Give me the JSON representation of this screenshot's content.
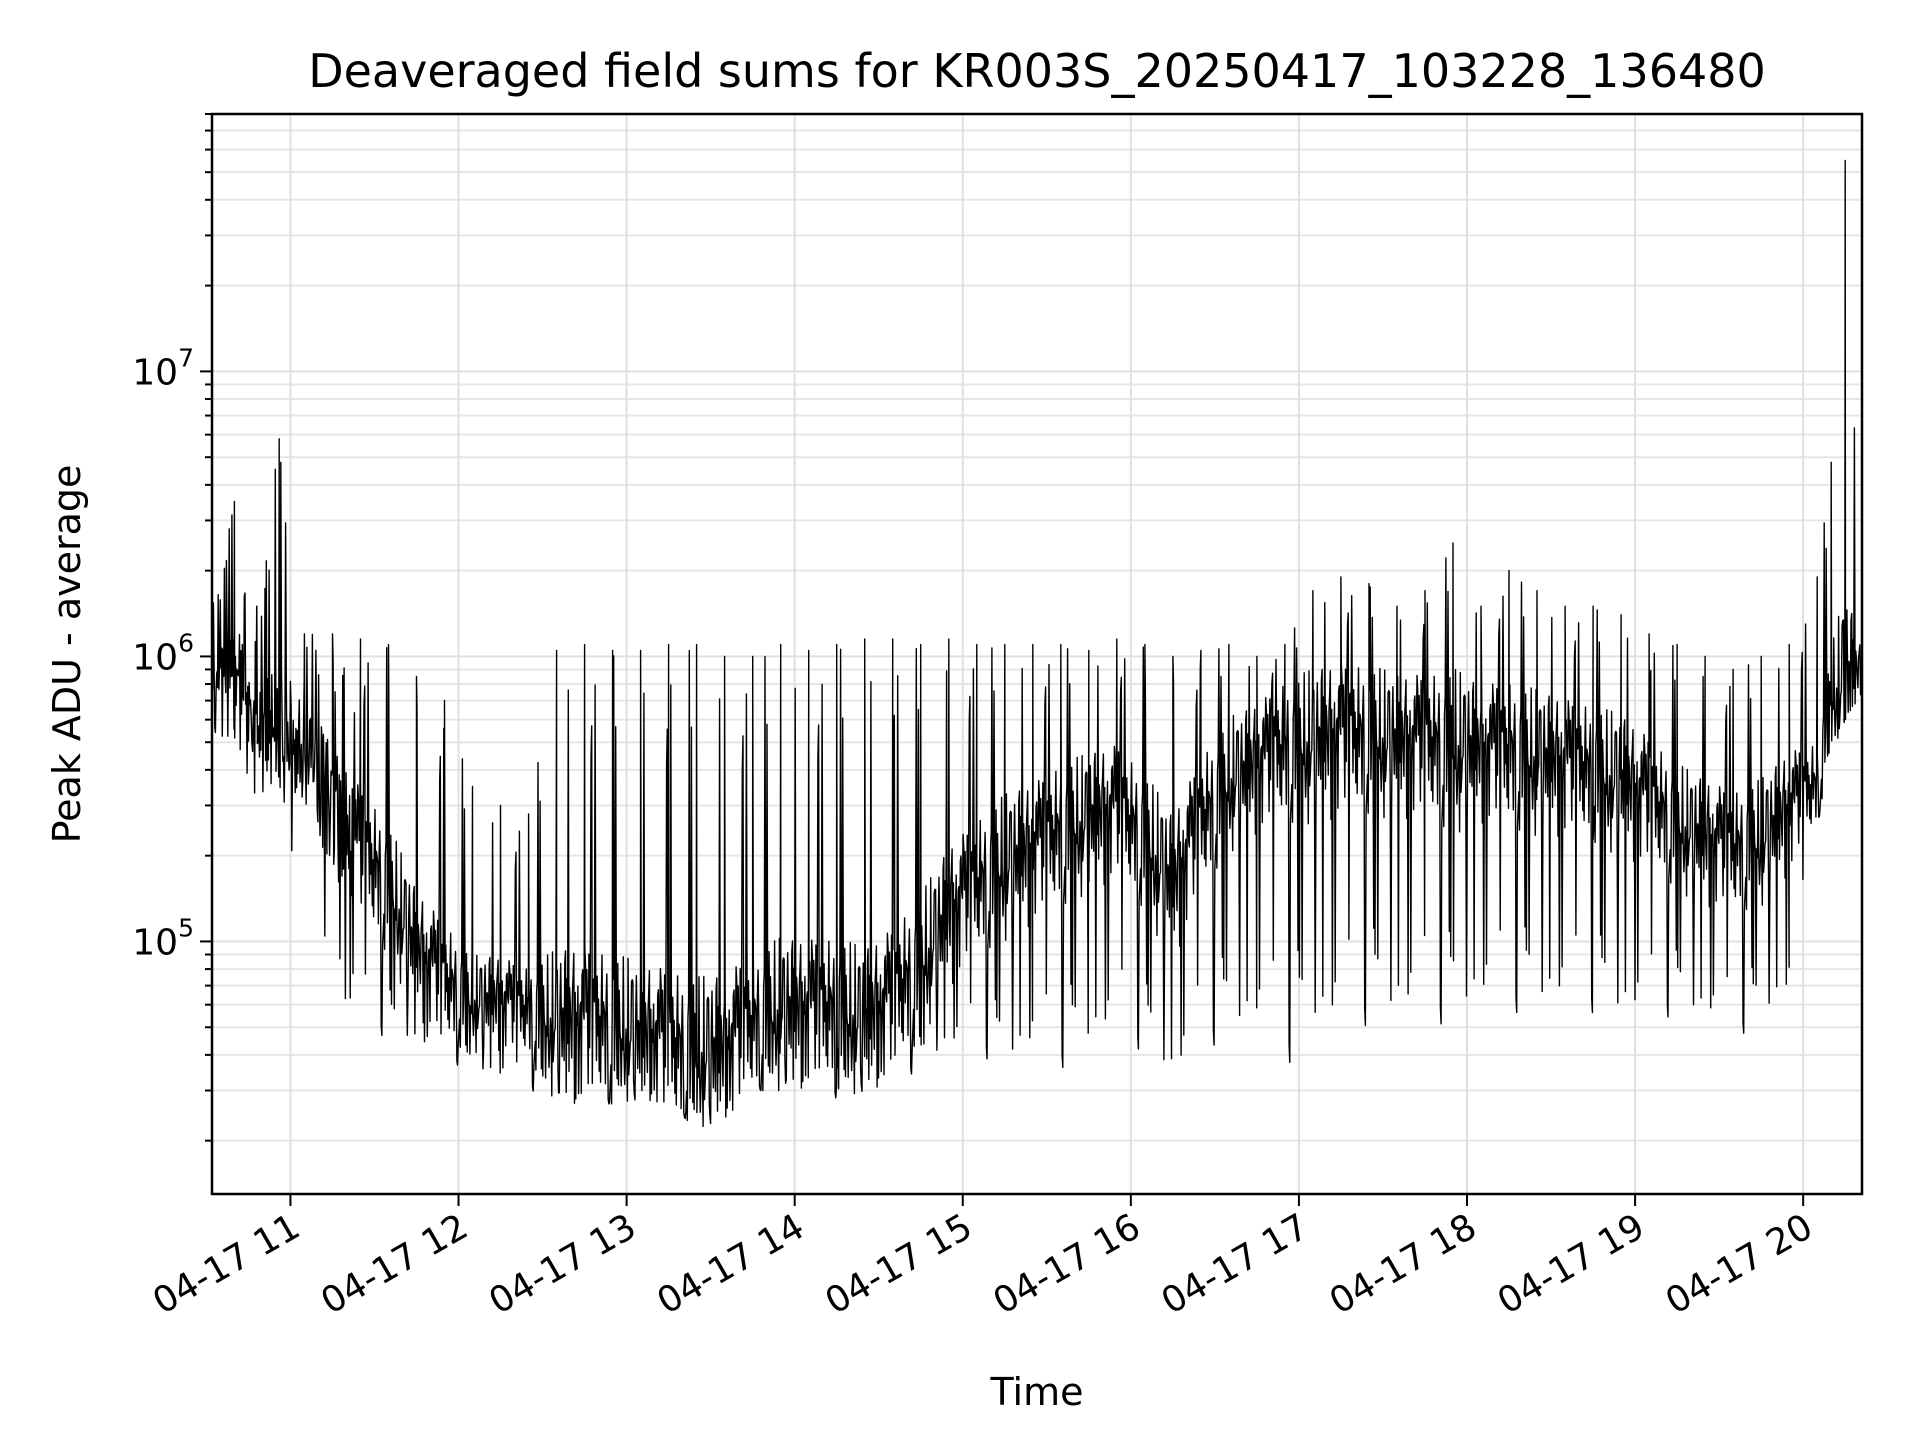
{
  "chart_data": {
    "type": "line",
    "title": "Deaveraged field sums for KR003S_20250417_103228_136480",
    "xlabel": "Time",
    "ylabel": "Peak ADU - average",
    "yscale": "log",
    "ylim": [
      13000,
      80000000
    ],
    "xlim": [
      "2025-04-17 10:32",
      "2025-04-17 20:21"
    ],
    "grid": true,
    "line_color": "#000000",
    "x_ticks": [
      {
        "value": "2025-04-17 11:00",
        "label": "04-17 11"
      },
      {
        "value": "2025-04-17 12:00",
        "label": "04-17 12"
      },
      {
        "value": "2025-04-17 13:00",
        "label": "04-17 13"
      },
      {
        "value": "2025-04-17 14:00",
        "label": "04-17 14"
      },
      {
        "value": "2025-04-17 15:00",
        "label": "04-17 15"
      },
      {
        "value": "2025-04-17 16:00",
        "label": "04-17 16"
      },
      {
        "value": "2025-04-17 17:00",
        "label": "04-17 17"
      },
      {
        "value": "2025-04-17 18:00",
        "label": "04-17 18"
      },
      {
        "value": "2025-04-17 19:00",
        "label": "04-17 19"
      },
      {
        "value": "2025-04-17 20:00",
        "label": "04-17 20"
      }
    ],
    "y_ticks": [
      {
        "value": 100000,
        "base": "10",
        "exp": "5"
      },
      {
        "value": 1000000,
        "base": "10",
        "exp": "6"
      },
      {
        "value": 10000000,
        "base": "10",
        "exp": "7"
      }
    ],
    "series": [
      {
        "x": [
          "2025-04-17 10:32",
          "2025-04-17 10:40",
          "2025-04-17 10:48",
          "2025-04-17 10:56",
          "2025-04-17 11:05",
          "2025-04-17 11:15",
          "2025-04-17 11:25",
          "2025-04-17 11:35",
          "2025-04-17 11:45",
          "2025-04-17 11:55",
          "2025-04-17 12:05",
          "2025-04-17 12:15",
          "2025-04-17 12:25",
          "2025-04-17 12:35",
          "2025-04-17 12:45",
          "2025-04-17 12:55",
          "2025-04-17 13:05",
          "2025-04-17 13:15",
          "2025-04-17 13:25",
          "2025-04-17 13:35",
          "2025-04-17 13:45",
          "2025-04-17 13:55",
          "2025-04-17 14:05",
          "2025-04-17 14:15",
          "2025-04-17 14:25",
          "2025-04-17 14:35",
          "2025-04-17 14:45",
          "2025-04-17 14:55",
          "2025-04-17 15:05",
          "2025-04-17 15:15",
          "2025-04-17 15:25",
          "2025-04-17 15:35",
          "2025-04-17 15:45",
          "2025-04-17 15:55",
          "2025-04-17 16:05",
          "2025-04-17 16:15",
          "2025-04-17 16:25",
          "2025-04-17 16:35",
          "2025-04-17 16:45",
          "2025-04-17 16:55",
          "2025-04-17 17:05",
          "2025-04-17 17:15",
          "2025-04-17 17:25",
          "2025-04-17 17:35",
          "2025-04-17 17:45",
          "2025-04-17 17:55",
          "2025-04-17 18:05",
          "2025-04-17 18:15",
          "2025-04-17 18:25",
          "2025-04-17 18:35",
          "2025-04-17 18:45",
          "2025-04-17 18:55",
          "2025-04-17 19:05",
          "2025-04-17 19:15",
          "2025-04-17 19:25",
          "2025-04-17 19:35",
          "2025-04-17 19:45",
          "2025-04-17 19:55",
          "2025-04-17 20:05",
          "2025-04-17 20:10",
          "2025-04-17 20:15",
          "2025-04-17 20:21"
        ],
        "median": [
          900000,
          1000000,
          550000,
          600000,
          450000,
          300000,
          200000,
          150000,
          90000,
          70000,
          60000,
          60000,
          55000,
          50000,
          50000,
          48000,
          45000,
          42000,
          38000,
          40000,
          50000,
          55000,
          55000,
          55000,
          50000,
          60000,
          80000,
          120000,
          150000,
          180000,
          200000,
          230000,
          260000,
          280000,
          220000,
          150000,
          250000,
          350000,
          400000,
          450000,
          480000,
          500000,
          500000,
          480000,
          470000,
          460000,
          450000,
          440000,
          420000,
          400000,
          380000,
          350000,
          300000,
          250000,
          220000,
          200000,
          220000,
          280000,
          350000,
          700000,
          800000,
          900000
        ],
        "low": [
          500000,
          450000,
          300000,
          350000,
          120000,
          60000,
          50000,
          45000,
          42000,
          38000,
          35000,
          32000,
          30000,
          28000,
          25000,
          27000,
          28000,
          27000,
          22000,
          24000,
          30000,
          30000,
          30000,
          28000,
          30000,
          32000,
          35000,
          40000,
          40000,
          35000,
          38000,
          35000,
          40000,
          45000,
          40000,
          30000,
          40000,
          45000,
          45000,
          35000,
          45000,
          45000,
          50000,
          50000,
          50000,
          50000,
          55000,
          55000,
          55000,
          55000,
          55000,
          50000,
          50000,
          55000,
          50000,
          45000,
          50000,
          60000,
          250000,
          450000,
          600000,
          700000
        ],
        "high": [
          1500000,
          3500000,
          1500000,
          5800000,
          1200000,
          1200000,
          1150000,
          1100000,
          850000,
          700000,
          350000,
          300000,
          280000,
          1050000,
          1100000,
          1050000,
          1050000,
          1100000,
          1100000,
          1000000,
          1000000,
          1100000,
          1050000,
          1100000,
          1150000,
          1150000,
          1100000,
          1150000,
          1100000,
          1100000,
          1100000,
          1100000,
          1050000,
          1150000,
          1100000,
          1000000,
          1050000,
          1100000,
          1000000,
          1100000,
          1700000,
          1900000,
          1800000,
          1500000,
          1700000,
          2500000,
          1500000,
          2000000,
          1700000,
          1500000,
          1500000,
          1400000,
          1200000,
          1100000,
          1000000,
          900000,
          1000000,
          1100000,
          1900000,
          4800000,
          55000000,
          1700000
        ]
      }
    ]
  }
}
